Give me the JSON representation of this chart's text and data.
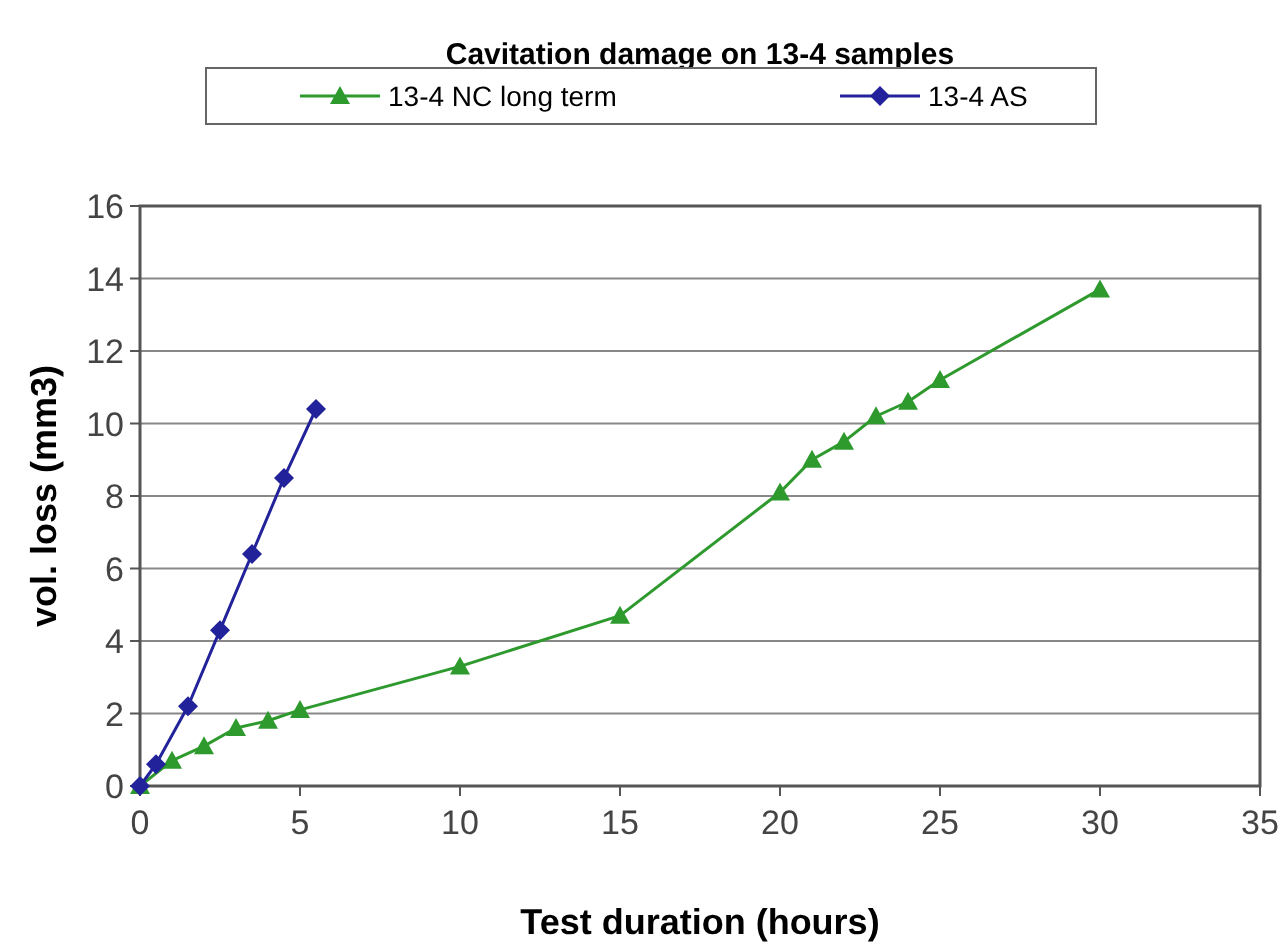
{
  "chart_data": {
    "type": "line",
    "title": "Cavitation damage on 13-4 samples",
    "xlabel": "Test duration (hours)",
    "ylabel": "vol. loss (mm3)",
    "xlim": [
      0,
      35
    ],
    "xticks": [
      0,
      5,
      10,
      15,
      20,
      25,
      30,
      35
    ],
    "ylim": [
      0,
      16
    ],
    "yticks": [
      0,
      2,
      4,
      6,
      8,
      10,
      12,
      14,
      16
    ],
    "grid": "y",
    "legend": "top",
    "series": [
      {
        "name": "13-4 NC long term",
        "color": "#2e9a2e",
        "marker": "triangle",
        "x": [
          0,
          1,
          2,
          3,
          4,
          5,
          10,
          15,
          20,
          21,
          22,
          23,
          24,
          25,
          30
        ],
        "values": [
          0,
          0.7,
          1.1,
          1.6,
          1.8,
          2.1,
          3.3,
          4.7,
          8.1,
          9.0,
          9.5,
          10.2,
          10.6,
          11.2,
          13.7
        ]
      },
      {
        "name": "13-4 AS",
        "color": "#22229a",
        "marker": "diamond",
        "x": [
          0,
          0.5,
          1.5,
          2.5,
          3.5,
          4.5,
          5.5
        ],
        "values": [
          0,
          0.6,
          2.2,
          4.3,
          6.4,
          8.5,
          10.4
        ]
      }
    ]
  }
}
